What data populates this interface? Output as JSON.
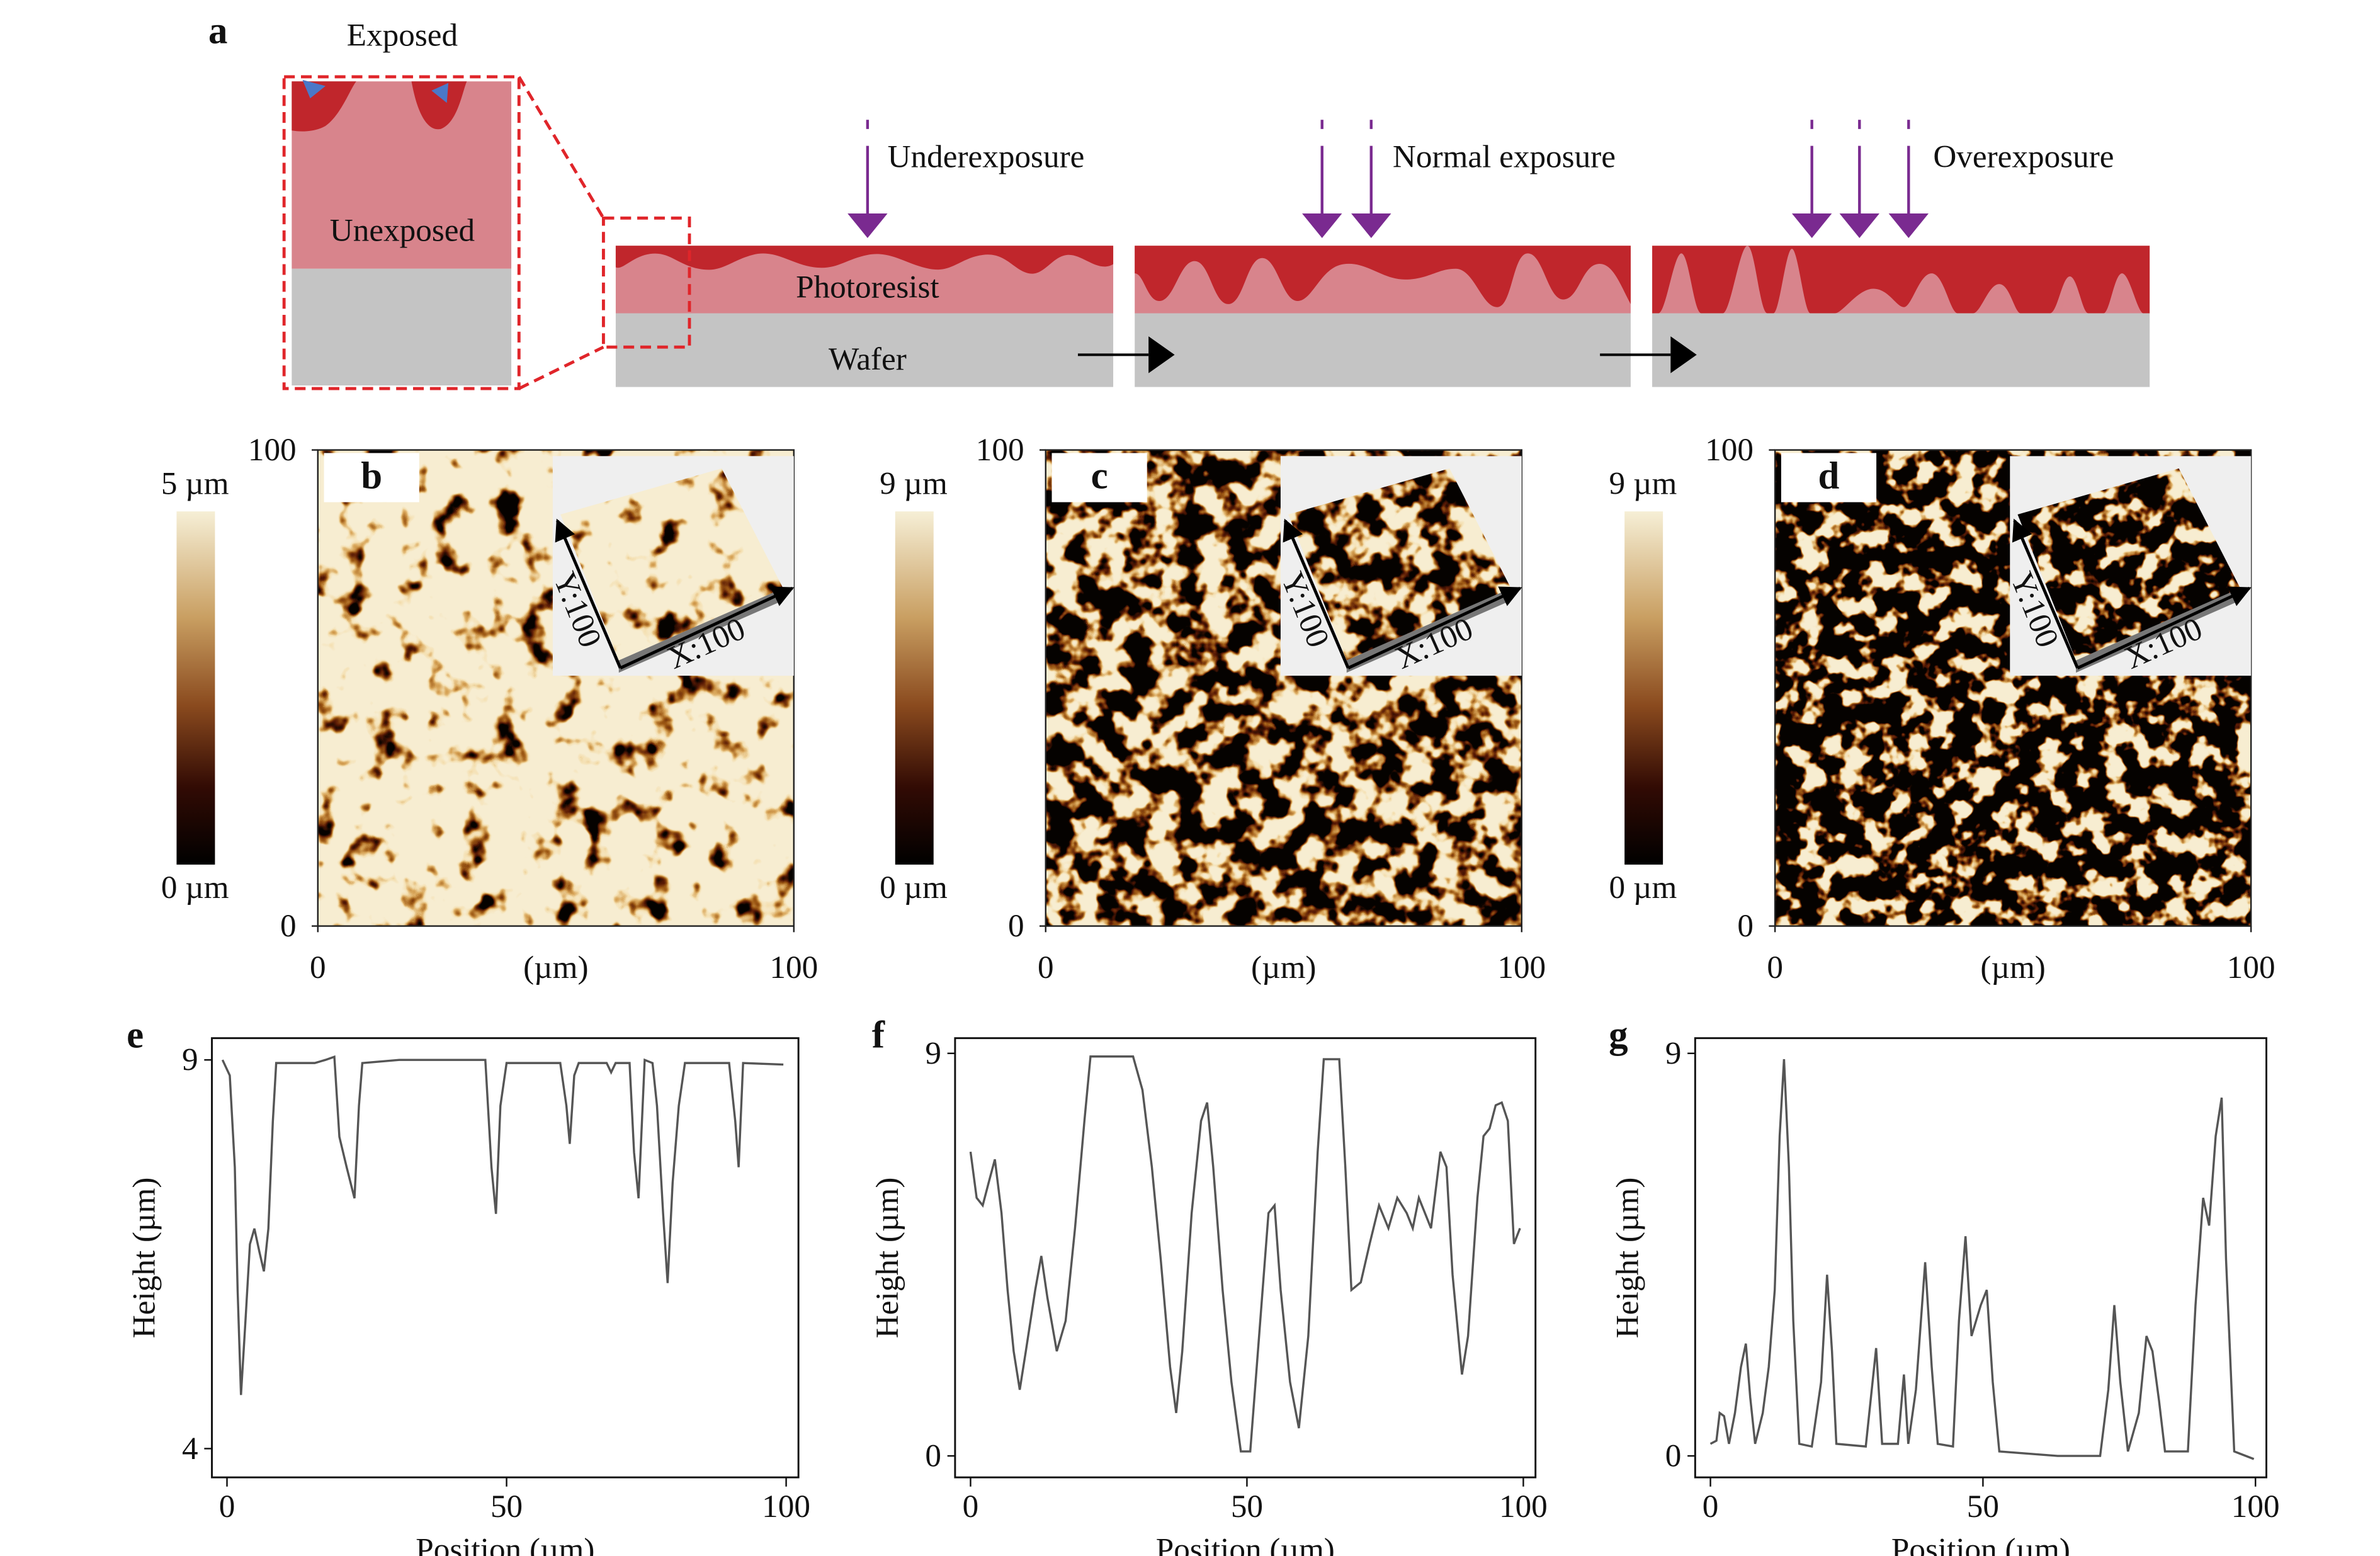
{
  "diagram": {
    "label": "a",
    "exposed": "Exposed",
    "unexposed": "Unexposed",
    "photoresist": "Photoresist",
    "wafer": "Wafer",
    "exposures": [
      "Underexposure",
      "Normal exposure",
      "Overexposure"
    ]
  },
  "maps": [
    {
      "label": "b",
      "colorbar": {
        "max_label": "5 µm",
        "min_label": "0 µm"
      },
      "xlim": [
        0,
        100
      ],
      "ylim": [
        0,
        100
      ],
      "xticks": [
        0,
        100
      ],
      "yticks": [
        0,
        100
      ],
      "xlabel": "(µm)",
      "inset": {
        "y_label": "Y:100",
        "x_label": "X:100"
      }
    },
    {
      "label": "c",
      "colorbar": {
        "max_label": "9 µm",
        "min_label": "0 µm"
      },
      "xlim": [
        0,
        100
      ],
      "ylim": [
        0,
        100
      ],
      "xticks": [
        0,
        100
      ],
      "yticks": [
        0,
        100
      ],
      "xlabel": "(µm)",
      "inset": {
        "y_label": "Y:100",
        "x_label": "X:100"
      }
    },
    {
      "label": "d",
      "colorbar": {
        "max_label": "9 µm",
        "min_label": "0 µm"
      },
      "xlim": [
        0,
        100
      ],
      "ylim": [
        0,
        100
      ],
      "xticks": [
        0,
        100
      ],
      "yticks": [
        0,
        100
      ],
      "xlabel": "(µm)",
      "inset": {
        "y_label": "Y:100",
        "x_label": "X:100"
      }
    }
  ],
  "chart_data": [
    {
      "type": "line",
      "label": "e",
      "xlabel": "Position (µm)",
      "ylabel": "Height (µm)",
      "color": "#555555",
      "xlim": [
        -2.7,
        102.2
      ],
      "ylim": [
        3.63,
        9.28
      ],
      "xticks": [
        0,
        50,
        100
      ],
      "yticks": [
        4,
        9
      ],
      "x": [
        -0.8,
        0.5,
        1.4,
        1.9,
        2.5,
        3.3,
        4.1,
        4.9,
        5.8,
        6.6,
        7.4,
        8.2,
        8.8,
        11.5,
        15.7,
        17.6,
        19.2,
        20.1,
        21.4,
        22.8,
        23.6,
        24.2,
        30.8,
        41.8,
        46.2,
        47.3,
        48.1,
        48.9,
        50.0,
        59.6,
        60.7,
        61.3,
        62.1,
        62.9,
        67.9,
        68.7,
        69.5,
        72.0,
        72.8,
        73.6,
        74.7,
        76.1,
        76.9,
        78.0,
        78.8,
        79.7,
        80.8,
        81.9,
        89.8,
        90.9,
        91.5,
        92.3,
        99.5
      ],
      "values": [
        9.0,
        8.8,
        7.62,
        6.04,
        4.69,
        5.64,
        6.63,
        6.83,
        6.53,
        6.28,
        6.83,
        8.21,
        8.96,
        8.96,
        8.96,
        9.0,
        9.04,
        8.01,
        7.62,
        7.22,
        8.41,
        8.96,
        9.0,
        9.0,
        9.0,
        7.62,
        7.02,
        8.41,
        8.96,
        8.96,
        8.41,
        7.92,
        8.8,
        8.96,
        8.96,
        8.84,
        8.96,
        8.96,
        7.81,
        7.22,
        9.0,
        8.96,
        8.41,
        7.02,
        6.13,
        7.42,
        8.41,
        8.96,
        8.96,
        8.21,
        7.62,
        8.96,
        8.94
      ]
    },
    {
      "type": "line",
      "label": "f",
      "xlabel": "Position (µm)",
      "ylabel": "Height (µm)",
      "color": "#555555",
      "xlim": [
        -2.8,
        102.2
      ],
      "ylim": [
        -0.48,
        9.34
      ],
      "xticks": [
        0,
        50,
        100
      ],
      "yticks": [
        0,
        9
      ],
      "x": [
        0,
        1.1,
        2.2,
        3.3,
        4.4,
        5.6,
        6.7,
        7.8,
        8.9,
        10.0,
        11.7,
        12.8,
        13.9,
        15.6,
        17.2,
        18.9,
        20.6,
        21.7,
        24.4,
        29.4,
        31.1,
        32.8,
        34.4,
        36.1,
        37.2,
        38.3,
        40.0,
        41.7,
        42.8,
        43.9,
        45.6,
        47.2,
        48.9,
        50.6,
        52.2,
        53.9,
        55.0,
        56.1,
        57.8,
        59.4,
        61.1,
        62.8,
        63.9,
        66.7,
        67.8,
        68.9,
        70.6,
        72.2,
        73.9,
        75.6,
        77.2,
        78.9,
        80.0,
        81.1,
        83.3,
        85.0,
        86.1,
        87.2,
        88.9,
        90.0,
        91.7,
        92.8,
        93.9,
        95.0,
        96.1,
        97.2,
        98.3,
        99.4
      ],
      "values": [
        6.8,
        5.77,
        5.6,
        6.12,
        6.63,
        5.43,
        3.71,
        2.34,
        1.48,
        2.34,
        3.71,
        4.47,
        3.54,
        2.34,
        3.02,
        5.09,
        7.49,
        8.93,
        8.93,
        8.93,
        8.18,
        6.46,
        4.4,
        1.99,
        0.96,
        2.34,
        5.43,
        7.49,
        7.9,
        6.46,
        3.71,
        1.65,
        0.1,
        0.1,
        2.68,
        5.43,
        5.6,
        3.71,
        1.65,
        0.62,
        2.68,
        6.8,
        8.87,
        8.87,
        6.46,
        3.71,
        3.88,
        4.74,
        5.6,
        5.09,
        5.77,
        5.43,
        5.09,
        5.77,
        5.09,
        6.8,
        6.46,
        4.05,
        1.82,
        2.68,
        5.77,
        7.15,
        7.32,
        7.84,
        7.9,
        7.49,
        4.74,
        5.09
      ]
    },
    {
      "type": "line",
      "label": "g",
      "xlabel": "Position (µm)",
      "ylabel": "Height (µm)",
      "color": "#555555",
      "xlim": [
        -2.8,
        102.0
      ],
      "ylim": [
        -0.48,
        9.34
      ],
      "xticks": [
        0,
        50,
        100
      ],
      "yticks": [
        0,
        9
      ],
      "x": [
        0,
        1.1,
        1.7,
        2.5,
        3.4,
        4.5,
        5.6,
        6.5,
        7.3,
        8.2,
        9.6,
        10.7,
        11.8,
        12.7,
        13.5,
        14.4,
        15.2,
        16.3,
        18.6,
        20.3,
        21.4,
        22.3,
        23.1,
        28.5,
        30.4,
        31.5,
        34.4,
        35.5,
        36.3,
        37.7,
        39.4,
        40.6,
        41.7,
        44.5,
        45.6,
        46.8,
        47.9,
        49.6,
        50.7,
        51.8,
        53.0,
        63.7,
        71.5,
        73.0,
        74.1,
        75.2,
        76.6,
        78.6,
        80.0,
        81.1,
        82.3,
        83.4,
        87.6,
        89.0,
        90.4,
        91.5,
        92.7,
        93.8,
        94.6,
        96.1,
        99.7
      ],
      "values": [
        0.27,
        0.34,
        0.96,
        0.89,
        0.27,
        0.96,
        1.99,
        2.51,
        1.31,
        0.27,
        0.96,
        1.99,
        3.71,
        7.15,
        8.87,
        6.46,
        3.02,
        0.27,
        0.21,
        1.65,
        4.05,
        2.34,
        0.27,
        0.21,
        2.41,
        0.27,
        0.27,
        1.82,
        0.27,
        1.48,
        4.33,
        1.99,
        0.27,
        0.21,
        3.02,
        4.91,
        2.68,
        3.37,
        3.71,
        1.65,
        0.1,
        0,
        0,
        1.48,
        3.37,
        1.65,
        0.1,
        0.96,
        2.68,
        2.34,
        1.24,
        0.1,
        0.1,
        3.37,
        5.77,
        5.15,
        7.15,
        8.01,
        4.4,
        0.1,
        -0.07
      ]
    }
  ]
}
